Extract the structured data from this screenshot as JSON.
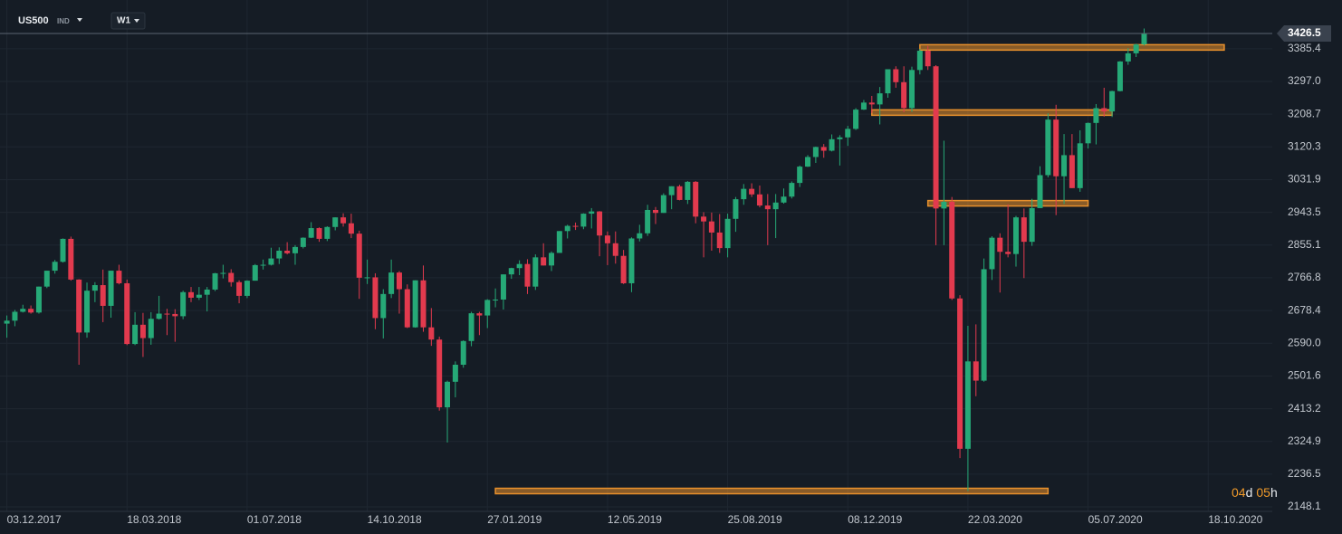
{
  "header": {
    "symbol": "US500",
    "market": "IND",
    "timeframe": "W1"
  },
  "chart_data": {
    "type": "candlestick",
    "x": [
      "03.12.2017",
      "10.12.2017",
      "17.12.2017",
      "24.12.2017",
      "31.12.2017",
      "07.01.2018",
      "14.01.2018",
      "21.01.2018",
      "28.01.2018",
      "04.02.2018",
      "11.02.2018",
      "18.02.2018",
      "25.02.2018",
      "04.03.2018",
      "11.03.2018",
      "18.03.2018",
      "25.03.2018",
      "01.04.2018",
      "08.04.2018",
      "15.04.2018",
      "22.04.2018",
      "29.04.2018",
      "06.05.2018",
      "13.05.2018",
      "20.05.2018",
      "27.05.2018",
      "03.06.2018",
      "10.06.2018",
      "17.06.2018",
      "24.06.2018",
      "01.07.2018",
      "08.07.2018",
      "15.07.2018",
      "22.07.2018",
      "29.07.2018",
      "05.08.2018",
      "12.08.2018",
      "19.08.2018",
      "26.08.2018",
      "02.09.2018",
      "09.09.2018",
      "16.09.2018",
      "23.09.2018",
      "30.09.2018",
      "07.10.2018",
      "14.10.2018",
      "21.10.2018",
      "28.10.2018",
      "04.11.2018",
      "11.11.2018",
      "18.11.2018",
      "25.11.2018",
      "02.12.2018",
      "09.12.2018",
      "16.12.2018",
      "23.12.2018",
      "30.12.2018",
      "06.01.2019",
      "13.01.2019",
      "20.01.2019",
      "27.01.2019",
      "03.02.2019",
      "10.02.2019",
      "17.02.2019",
      "24.02.2019",
      "03.03.2019",
      "10.03.2019",
      "17.03.2019",
      "24.03.2019",
      "31.03.2019",
      "07.04.2019",
      "14.04.2019",
      "21.04.2019",
      "28.04.2019",
      "05.05.2019",
      "12.05.2019",
      "19.05.2019",
      "26.05.2019",
      "02.06.2019",
      "09.06.2019",
      "16.06.2019",
      "23.06.2019",
      "30.06.2019",
      "07.07.2019",
      "14.07.2019",
      "21.07.2019",
      "28.07.2019",
      "04.08.2019",
      "11.08.2019",
      "18.08.2019",
      "25.08.2019",
      "01.09.2019",
      "08.09.2019",
      "15.09.2019",
      "22.09.2019",
      "29.09.2019",
      "06.10.2019",
      "13.10.2019",
      "20.10.2019",
      "27.10.2019",
      "03.11.2019",
      "10.11.2019",
      "17.11.2019",
      "24.11.2019",
      "01.12.2019",
      "08.12.2019",
      "15.12.2019",
      "22.12.2019",
      "29.12.2019",
      "05.01.2020",
      "12.01.2020",
      "19.01.2020",
      "26.01.2020",
      "02.02.2020",
      "09.02.2020",
      "16.02.2020",
      "23.02.2020",
      "01.03.2020",
      "08.03.2020",
      "15.03.2020",
      "22.03.2020",
      "29.03.2020",
      "05.04.2020",
      "12.04.2020",
      "19.04.2020",
      "26.04.2020",
      "03.05.2020",
      "10.05.2020",
      "17.05.2020",
      "24.05.2020",
      "31.05.2020",
      "07.06.2020",
      "14.06.2020",
      "21.06.2020",
      "28.06.2020",
      "05.07.2020",
      "12.07.2020",
      "19.07.2020",
      "26.07.2020",
      "02.08.2020",
      "09.08.2020",
      "16.08.2020",
      "23.08.2020"
    ],
    "open": [
      2643,
      2651,
      2675,
      2683,
      2673,
      2743,
      2786,
      2810,
      2872,
      2762,
      2619,
      2732,
      2747,
      2691,
      2786,
      2752,
      2588,
      2640,
      2604,
      2656,
      2670,
      2669,
      2663,
      2728,
      2713,
      2721,
      2735,
      2779,
      2780,
      2755,
      2718,
      2759,
      2801,
      2802,
      2819,
      2840,
      2833,
      2850,
      2875,
      2901,
      2872,
      2904,
      2930,
      2914,
      2886,
      2767,
      2768,
      2658,
      2723,
      2781,
      2736,
      2633,
      2760,
      2633,
      2600,
      2417,
      2486,
      2532,
      2596,
      2671,
      2665,
      2707,
      2708,
      2776,
      2793,
      2804,
      2743,
      2822,
      2800,
      2834,
      2893,
      2907,
      2905,
      2940,
      2946,
      2881,
      2860,
      2826,
      2752,
      2873,
      2887,
      2950,
      2942,
      2990,
      3014,
      2977,
      3026,
      2932,
      2919,
      2889,
      2847,
      2926,
      2979,
      3007,
      2992,
      2962,
      2952,
      2970,
      2986,
      3023,
      3067,
      3093,
      3120,
      3110,
      3141,
      3146,
      3169,
      3221,
      3240,
      3235,
      3265,
      3330,
      3295,
      3225,
      3328,
      3380,
      3338,
      2954,
      2972,
      2711,
      2305,
      2541,
      2489,
      2790,
      2875,
      2837,
      2831,
      2930,
      2864,
      2955,
      3044,
      3194,
      3041,
      3098,
      3009,
      3130,
      3185,
      3225,
      3216,
      3271,
      3351,
      3373,
      3397
    ],
    "high": [
      2665,
      2680,
      2694,
      2692,
      2743,
      2786,
      2815,
      2873,
      2878,
      2763,
      2754,
      2755,
      2789,
      2786,
      2802,
      2762,
      2674,
      2672,
      2674,
      2718,
      2683,
      2682,
      2732,
      2742,
      2742,
      2742,
      2780,
      2802,
      2790,
      2760,
      2760,
      2804,
      2816,
      2848,
      2849,
      2863,
      2855,
      2876,
      2917,
      2903,
      2906,
      2930,
      2941,
      2940,
      2894,
      2816,
      2779,
      2736,
      2816,
      2785,
      2749,
      2760,
      2800,
      2685,
      2608,
      2489,
      2541,
      2598,
      2675,
      2675,
      2709,
      2738,
      2776,
      2794,
      2814,
      2817,
      2830,
      2860,
      2838,
      2893,
      2910,
      2916,
      2941,
      2955,
      2947,
      2892,
      2892,
      2842,
      2876,
      2910,
      2964,
      2958,
      2995,
      3014,
      3018,
      3028,
      3028,
      2944,
      2943,
      2939,
      2940,
      2985,
      3020,
      3022,
      3016,
      2993,
      2993,
      3008,
      3027,
      3070,
      3098,
      3121,
      3128,
      3154,
      3152,
      3177,
      3225,
      3247,
      3258,
      3282,
      3330,
      3338,
      3338,
      3337,
      3385,
      3393,
      3341,
      3137,
      2985,
      2720,
      2637,
      2641,
      2819,
      2879,
      2887,
      2965,
      2934,
      2954,
      2980,
      3068,
      3211,
      3234,
      3155,
      3155,
      3165,
      3186,
      3236,
      3280,
      3272,
      3352,
      3387,
      3399,
      3440
    ],
    "low": [
      2605,
      2636,
      2673,
      2670,
      2670,
      2739,
      2778,
      2808,
      2759,
      2532,
      2605,
      2701,
      2647,
      2659,
      2749,
      2585,
      2585,
      2553,
      2586,
      2654,
      2612,
      2594,
      2655,
      2701,
      2707,
      2676,
      2731,
      2765,
      2743,
      2698,
      2712,
      2759,
      2789,
      2800,
      2804,
      2830,
      2802,
      2846,
      2874,
      2864,
      2866,
      2895,
      2905,
      2874,
      2710,
      2750,
      2628,
      2603,
      2712,
      2670,
      2631,
      2632,
      2621,
      2583,
      2408,
      2322,
      2444,
      2524,
      2582,
      2612,
      2631,
      2687,
      2681,
      2764,
      2774,
      2723,
      2734,
      2800,
      2785,
      2834,
      2873,
      2896,
      2898,
      2900,
      2825,
      2801,
      2805,
      2750,
      2728,
      2865,
      2880,
      2912,
      2942,
      2952,
      2976,
      2966,
      2914,
      2822,
      2840,
      2834,
      2822,
      2891,
      2964,
      2985,
      2957,
      2855,
      2874,
      2967,
      2981,
      3012,
      3066,
      3077,
      3091,
      3108,
      3070,
      3123,
      3166,
      3220,
      3212,
      3181,
      3253,
      3280,
      3214,
      3215,
      3316,
      3328,
      2855,
      2855,
      2707,
      2280,
      2191,
      2447,
      2486,
      2761,
      2727,
      2822,
      2797,
      2766,
      2853,
      2955,
      3038,
      2936,
      2966,
      3009,
      2999,
      3116,
      3127,
      3202,
      3201,
      3270,
      3342,
      3363,
      3394
    ],
    "close": [
      2651,
      2675,
      2683,
      2673,
      2743,
      2786,
      2810,
      2872,
      2762,
      2619,
      2732,
      2747,
      2691,
      2786,
      2752,
      2588,
      2640,
      2604,
      2656,
      2670,
      2669,
      2663,
      2728,
      2713,
      2721,
      2735,
      2779,
      2780,
      2755,
      2718,
      2759,
      2801,
      2802,
      2819,
      2840,
      2833,
      2850,
      2875,
      2901,
      2872,
      2904,
      2930,
      2914,
      2886,
      2767,
      2768,
      2658,
      2723,
      2781,
      2736,
      2633,
      2760,
      2633,
      2600,
      2417,
      2486,
      2532,
      2596,
      2671,
      2665,
      2707,
      2708,
      2776,
      2793,
      2804,
      2743,
      2822,
      2800,
      2834,
      2893,
      2907,
      2905,
      2940,
      2946,
      2881,
      2860,
      2826,
      2752,
      2873,
      2887,
      2950,
      2942,
      2990,
      3014,
      2977,
      3026,
      2932,
      2919,
      2889,
      2847,
      2926,
      2979,
      3007,
      2992,
      2962,
      2952,
      2970,
      2986,
      3023,
      3067,
      3093,
      3120,
      3110,
      3141,
      3146,
      3169,
      3221,
      3240,
      3235,
      3265,
      3330,
      3295,
      3225,
      3328,
      3380,
      3338,
      2954,
      2972,
      2711,
      2305,
      2541,
      2489,
      2790,
      2875,
      2837,
      2831,
      2930,
      2864,
      2955,
      3044,
      3194,
      3041,
      3098,
      3009,
      3130,
      3185,
      3225,
      3216,
      3271,
      3351,
      3373,
      3397,
      3426.5
    ],
    "up_color": "#26a977",
    "down_color": "#e23a4e",
    "last_price": 3426.5,
    "xlim": [
      "27.11.2017",
      "13.12.2020"
    ],
    "xticks": [
      "03.12.2017",
      "18.03.2018",
      "01.07.2018",
      "14.10.2018",
      "27.01.2019",
      "12.05.2019",
      "25.08.2019",
      "08.12.2019",
      "22.03.2020",
      "05.07.2020",
      "18.10.2020"
    ],
    "ylim": [
      2136,
      3517
    ],
    "yticks": [
      3385.4,
      {
        "value": 3297,
        "label": "3297.0"
      },
      3208.7,
      3120.3,
      3031.9,
      2943.5,
      2855.1,
      2766.8,
      2678.4,
      {
        "value": 2590,
        "label": "2590.0"
      },
      2501.6,
      2413.2,
      2324.9,
      2236.5,
      2148.1
    ],
    "grid": true,
    "levels": [
      {
        "value": 3389,
        "start": "09.02.2020",
        "end": "01.11.2020"
      },
      {
        "value": 3213,
        "start": "29.12.2019",
        "end": "26.07.2020"
      },
      {
        "value": 2968,
        "start": "16.02.2020",
        "end": "05.07.2020"
      },
      {
        "value": 2191,
        "start": "03.02.2019",
        "end": "31.05.2020"
      }
    ],
    "level_color": "#e8902c",
    "countdown": {
      "days": "04",
      "day_unit": "d",
      "hours": "05",
      "hour_unit": "h"
    }
  }
}
